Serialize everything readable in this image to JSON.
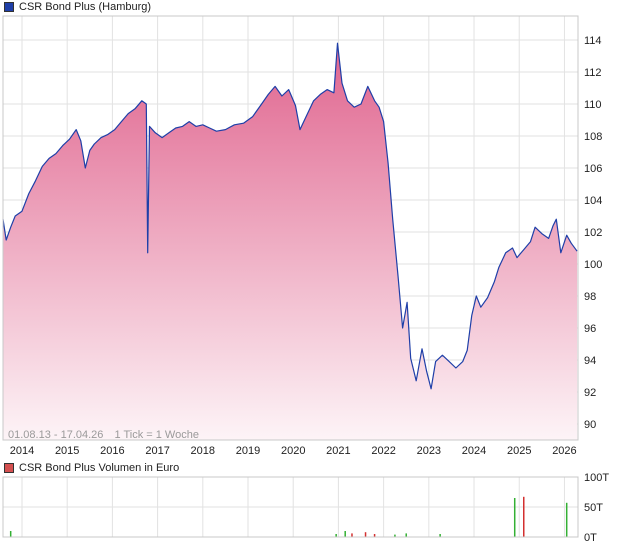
{
  "colors": {
    "line": "#1f3fa8",
    "fill_top": "#e0648e",
    "fill_bottom": "#fdf4f7",
    "grid": "#e2e2e2",
    "volume_green": "#33b033",
    "volume_red": "#d33030",
    "legend_price_swatch": "#1f3fa8",
    "legend_volume_swatch": "#d45050"
  },
  "legend": {
    "price": "CSR Bond Plus (Hamburg)",
    "volume": "CSR Bond Plus Volumen in Euro"
  },
  "footnote": {
    "range": "01.08.13 - 17.04.26",
    "tick": "1 Tick = 1 Woche"
  },
  "chart_data": [
    {
      "type": "area",
      "name": "price",
      "xlim": [
        2013.58,
        2026.3
      ],
      "ylim": [
        89.0,
        115.5
      ],
      "y_ticks": [
        90,
        92,
        94,
        96,
        98,
        100,
        102,
        104,
        106,
        108,
        110,
        112,
        114
      ],
      "x_ticks": [
        {
          "label": "2014",
          "x": 2014.0
        },
        {
          "label": "2015",
          "x": 2015.0
        },
        {
          "label": "2016",
          "x": 2016.0
        },
        {
          "label": "2017",
          "x": 2017.0
        },
        {
          "label": "2018",
          "x": 2018.0
        },
        {
          "label": "2019",
          "x": 2019.0
        },
        {
          "label": "2020",
          "x": 2020.0
        },
        {
          "label": "2021",
          "x": 2021.0
        },
        {
          "label": "2022",
          "x": 2022.0
        },
        {
          "label": "2023",
          "x": 2023.0
        },
        {
          "label": "2024",
          "x": 2024.0
        },
        {
          "label": "2025",
          "x": 2025.0
        },
        {
          "label": "2026",
          "x": 2026.0
        }
      ],
      "grid": true,
      "points": [
        [
          2013.58,
          102.8
        ],
        [
          2013.65,
          101.5
        ],
        [
          2013.75,
          102.3
        ],
        [
          2013.85,
          103.0
        ],
        [
          2014.0,
          103.3
        ],
        [
          2014.15,
          104.4
        ],
        [
          2014.3,
          105.2
        ],
        [
          2014.45,
          106.1
        ],
        [
          2014.6,
          106.6
        ],
        [
          2014.75,
          106.9
        ],
        [
          2014.9,
          107.4
        ],
        [
          2015.05,
          107.8
        ],
        [
          2015.2,
          108.4
        ],
        [
          2015.3,
          107.7
        ],
        [
          2015.4,
          106.0
        ],
        [
          2015.5,
          107.1
        ],
        [
          2015.6,
          107.5
        ],
        [
          2015.75,
          107.9
        ],
        [
          2015.9,
          108.1
        ],
        [
          2016.05,
          108.4
        ],
        [
          2016.2,
          108.9
        ],
        [
          2016.35,
          109.4
        ],
        [
          2016.5,
          109.7
        ],
        [
          2016.65,
          110.2
        ],
        [
          2016.75,
          110.0
        ],
        [
          2016.78,
          100.7
        ],
        [
          2016.82,
          108.6
        ],
        [
          2016.95,
          108.2
        ],
        [
          2017.1,
          107.9
        ],
        [
          2017.25,
          108.2
        ],
        [
          2017.4,
          108.5
        ],
        [
          2017.55,
          108.6
        ],
        [
          2017.7,
          108.9
        ],
        [
          2017.85,
          108.6
        ],
        [
          2018.0,
          108.7
        ],
        [
          2018.15,
          108.5
        ],
        [
          2018.3,
          108.3
        ],
        [
          2018.5,
          108.4
        ],
        [
          2018.7,
          108.7
        ],
        [
          2018.9,
          108.8
        ],
        [
          2019.1,
          109.2
        ],
        [
          2019.3,
          110.0
        ],
        [
          2019.45,
          110.6
        ],
        [
          2019.6,
          111.1
        ],
        [
          2019.75,
          110.5
        ],
        [
          2019.9,
          110.9
        ],
        [
          2020.05,
          109.9
        ],
        [
          2020.15,
          108.4
        ],
        [
          2020.25,
          109.0
        ],
        [
          2020.45,
          110.2
        ],
        [
          2020.6,
          110.6
        ],
        [
          2020.75,
          110.9
        ],
        [
          2020.9,
          110.7
        ],
        [
          2020.98,
          113.8
        ],
        [
          2021.08,
          111.3
        ],
        [
          2021.2,
          110.2
        ],
        [
          2021.35,
          109.8
        ],
        [
          2021.5,
          110.0
        ],
        [
          2021.65,
          111.1
        ],
        [
          2021.8,
          110.2
        ],
        [
          2021.9,
          109.8
        ],
        [
          2022.0,
          108.9
        ],
        [
          2022.1,
          106.3
        ],
        [
          2022.2,
          102.8
        ],
        [
          2022.32,
          99.2
        ],
        [
          2022.42,
          96.0
        ],
        [
          2022.52,
          97.6
        ],
        [
          2022.6,
          94.1
        ],
        [
          2022.72,
          92.7
        ],
        [
          2022.85,
          94.7
        ],
        [
          2022.95,
          93.3
        ],
        [
          2023.05,
          92.2
        ],
        [
          2023.15,
          93.9
        ],
        [
          2023.3,
          94.3
        ],
        [
          2023.45,
          93.9
        ],
        [
          2023.6,
          93.5
        ],
        [
          2023.75,
          93.9
        ],
        [
          2023.85,
          94.6
        ],
        [
          2023.95,
          96.8
        ],
        [
          2024.05,
          98.0
        ],
        [
          2024.15,
          97.3
        ],
        [
          2024.3,
          97.9
        ],
        [
          2024.45,
          98.9
        ],
        [
          2024.55,
          99.8
        ],
        [
          2024.7,
          100.7
        ],
        [
          2024.85,
          101.0
        ],
        [
          2024.95,
          100.4
        ],
        [
          2025.1,
          100.9
        ],
        [
          2025.25,
          101.4
        ],
        [
          2025.35,
          102.3
        ],
        [
          2025.5,
          101.9
        ],
        [
          2025.65,
          101.6
        ],
        [
          2025.75,
          102.4
        ],
        [
          2025.82,
          102.8
        ],
        [
          2025.92,
          100.7
        ],
        [
          2026.05,
          101.8
        ],
        [
          2026.15,
          101.3
        ],
        [
          2026.28,
          100.8
        ]
      ]
    },
    {
      "type": "bar",
      "name": "volume",
      "xlim": [
        2013.58,
        2026.3
      ],
      "ylim": [
        0,
        100
      ],
      "y_ticks": [
        {
          "label": "0T",
          "value": 0
        },
        {
          "label": "50T",
          "value": 50
        },
        {
          "label": "100T",
          "value": 100
        }
      ],
      "grid": true,
      "bars": [
        {
          "x": 2013.75,
          "value": 10,
          "color": "green"
        },
        {
          "x": 2020.95,
          "value": 5,
          "color": "green"
        },
        {
          "x": 2021.15,
          "value": 10,
          "color": "green"
        },
        {
          "x": 2021.3,
          "value": 6,
          "color": "red"
        },
        {
          "x": 2021.6,
          "value": 8,
          "color": "red"
        },
        {
          "x": 2021.8,
          "value": 5,
          "color": "red"
        },
        {
          "x": 2022.25,
          "value": 4,
          "color": "green"
        },
        {
          "x": 2022.5,
          "value": 6,
          "color": "green"
        },
        {
          "x": 2023.25,
          "value": 5,
          "color": "green"
        },
        {
          "x": 2024.9,
          "value": 65,
          "color": "green"
        },
        {
          "x": 2025.1,
          "value": 67,
          "color": "red"
        },
        {
          "x": 2026.05,
          "value": 57,
          "color": "green"
        }
      ]
    }
  ]
}
